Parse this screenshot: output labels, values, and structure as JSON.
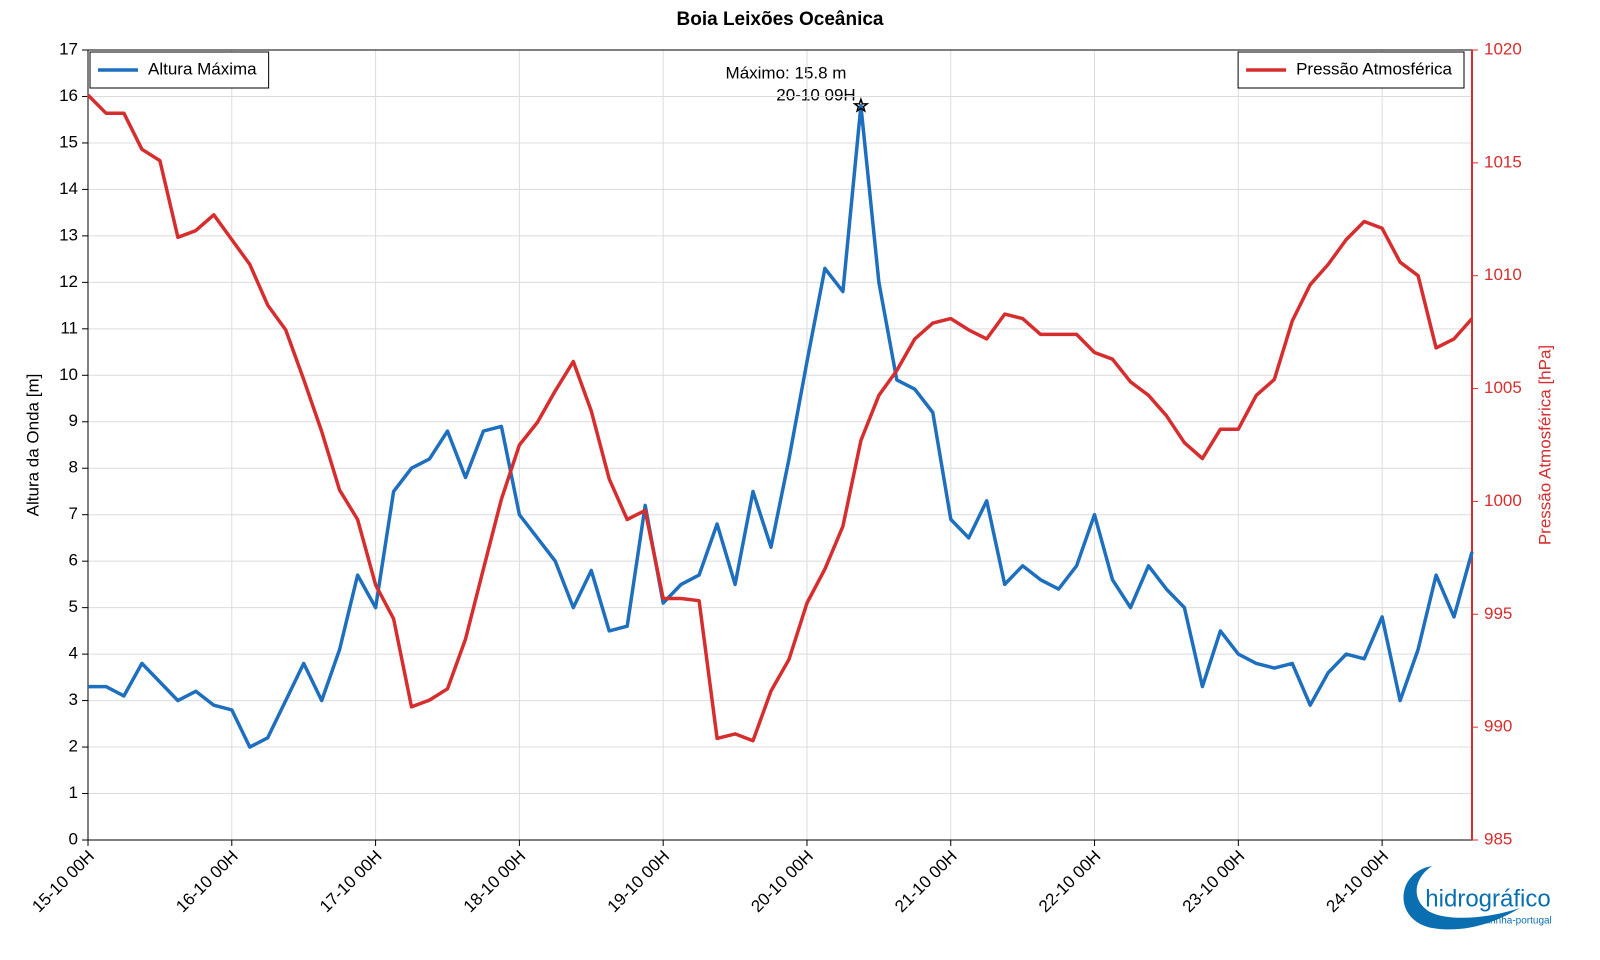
{
  "chart_data": {
    "type": "line",
    "title": "Boia Leixões Oceânica",
    "ylabel": "Altura da Onda [m]",
    "y2label": "Pressão Atmosférica [hPa]",
    "annotation": [
      "Máximo: 15.8 m",
      "20-10 09H"
    ],
    "logo": [
      "hidrográfico",
      "marinha-portugal"
    ],
    "grid": true,
    "legend": "upper left",
    "legend2": "upper right",
    "x": [
      "15-10 00H",
      "15-10 03H",
      "15-10 06H",
      "15-10 09H",
      "15-10 12H",
      "15-10 15H",
      "15-10 18H",
      "15-10 21H",
      "16-10 00H",
      "16-10 03H",
      "16-10 06H",
      "16-10 09H",
      "16-10 12H",
      "16-10 15H",
      "16-10 18H",
      "16-10 21H",
      "17-10 00H",
      "17-10 03H",
      "17-10 06H",
      "17-10 09H",
      "17-10 12H",
      "17-10 15H",
      "17-10 18H",
      "17-10 21H",
      "18-10 00H",
      "18-10 03H",
      "18-10 06H",
      "18-10 09H",
      "18-10 12H",
      "18-10 15H",
      "18-10 18H",
      "18-10 21H",
      "19-10 00H",
      "19-10 03H",
      "19-10 06H",
      "19-10 09H",
      "19-10 12H",
      "19-10 15H",
      "19-10 18H",
      "19-10 21H",
      "20-10 00H",
      "20-10 03H",
      "20-10 06H",
      "20-10 09H",
      "20-10 12H",
      "20-10 15H",
      "20-10 18H",
      "20-10 21H",
      "21-10 00H",
      "21-10 03H",
      "21-10 06H",
      "21-10 09H",
      "21-10 12H",
      "21-10 15H",
      "21-10 18H",
      "21-10 21H",
      "22-10 00H",
      "22-10 03H",
      "22-10 06H",
      "22-10 09H",
      "22-10 12H",
      "22-10 15H",
      "22-10 18H",
      "22-10 21H",
      "23-10 00H",
      "23-10 03H",
      "23-10 06H",
      "23-10 09H",
      "23-10 12H",
      "23-10 15H",
      "23-10 18H",
      "23-10 21H",
      "24-10 00H",
      "24-10 03H",
      "24-10 06H",
      "24-10 09H",
      "24-10 12H",
      "24-10 15H"
    ],
    "xlim": [
      "15-10 00H",
      "24-10 15H"
    ],
    "xticks": [
      "15-10 00H",
      "16-10 00H",
      "17-10 00H",
      "18-10 00H",
      "19-10 00H",
      "20-10 00H",
      "21-10 00H",
      "22-10 00H",
      "23-10 00H",
      "24-10 00H"
    ],
    "ylim": [
      0,
      17
    ],
    "yticks": [
      0,
      1,
      2,
      3,
      4,
      5,
      6,
      7,
      8,
      9,
      10,
      11,
      12,
      13,
      14,
      15,
      16,
      17
    ],
    "y2lim": [
      985,
      1020
    ],
    "y2ticks": [
      985,
      990,
      995,
      1000,
      1005,
      1010,
      1015,
      1020
    ],
    "series": [
      {
        "name": "Altura Máxima",
        "color": "#1f6fbf",
        "values": [
          3.3,
          3.3,
          3.1,
          3.8,
          3.4,
          3.0,
          3.2,
          2.9,
          2.8,
          2.0,
          2.2,
          3.0,
          3.8,
          3.0,
          4.1,
          5.7,
          5.0,
          7.5,
          8.0,
          8.2,
          8.8,
          7.8,
          8.8,
          8.9,
          7.0,
          6.5,
          6.0,
          5.0,
          5.8,
          4.5,
          4.6,
          7.2,
          5.1,
          5.5,
          5.7,
          6.8,
          5.5,
          7.5,
          6.3,
          8.2,
          10.3,
          12.3,
          11.8,
          15.8,
          12.0,
          9.9,
          9.7,
          9.2,
          6.9,
          6.5,
          7.3,
          5.5,
          5.9,
          5.6,
          5.4,
          5.9,
          7.0,
          5.6,
          5.0,
          5.9,
          5.4,
          5.0,
          3.3,
          4.5,
          4.0,
          3.8,
          3.7,
          3.8,
          2.9,
          3.6,
          4.0,
          3.9,
          4.8,
          3.0,
          4.1,
          5.7,
          4.8,
          6.2
        ]
      },
      {
        "name": "Pressão Atmosférica",
        "color": "#d62e2e",
        "axis": "y2",
        "values": [
          1018.0,
          1017.2,
          1017.2,
          1015.6,
          1015.1,
          1011.7,
          1012.0,
          1012.7,
          1011.6,
          1010.5,
          1008.7,
          1007.6,
          1005.4,
          1003.1,
          1000.5,
          999.2,
          996.3,
          994.8,
          990.9,
          991.2,
          991.7,
          993.9,
          997.0,
          1000.1,
          1002.5,
          1003.5,
          1004.9,
          1006.2,
          1004.0,
          1001.0,
          999.2,
          999.6,
          995.7,
          995.7,
          995.6,
          989.5,
          989.7,
          989.4,
          991.6,
          993.0,
          995.5,
          997.0,
          998.9,
          1002.7,
          1004.7,
          1005.8,
          1007.2,
          1007.9,
          1008.1,
          1007.6,
          1007.2,
          1008.3,
          1008.1,
          1007.4,
          1007.4,
          1007.4,
          1006.6,
          1006.3,
          1005.3,
          1004.7,
          1003.8,
          1002.6,
          1001.9,
          1003.2,
          1003.2,
          1004.7,
          1005.4,
          1008.0,
          1009.6,
          1010.5,
          1011.6,
          1012.4,
          1012.1,
          1010.6,
          1010.0,
          1006.8,
          1007.2,
          1008.1
        ]
      }
    ]
  }
}
